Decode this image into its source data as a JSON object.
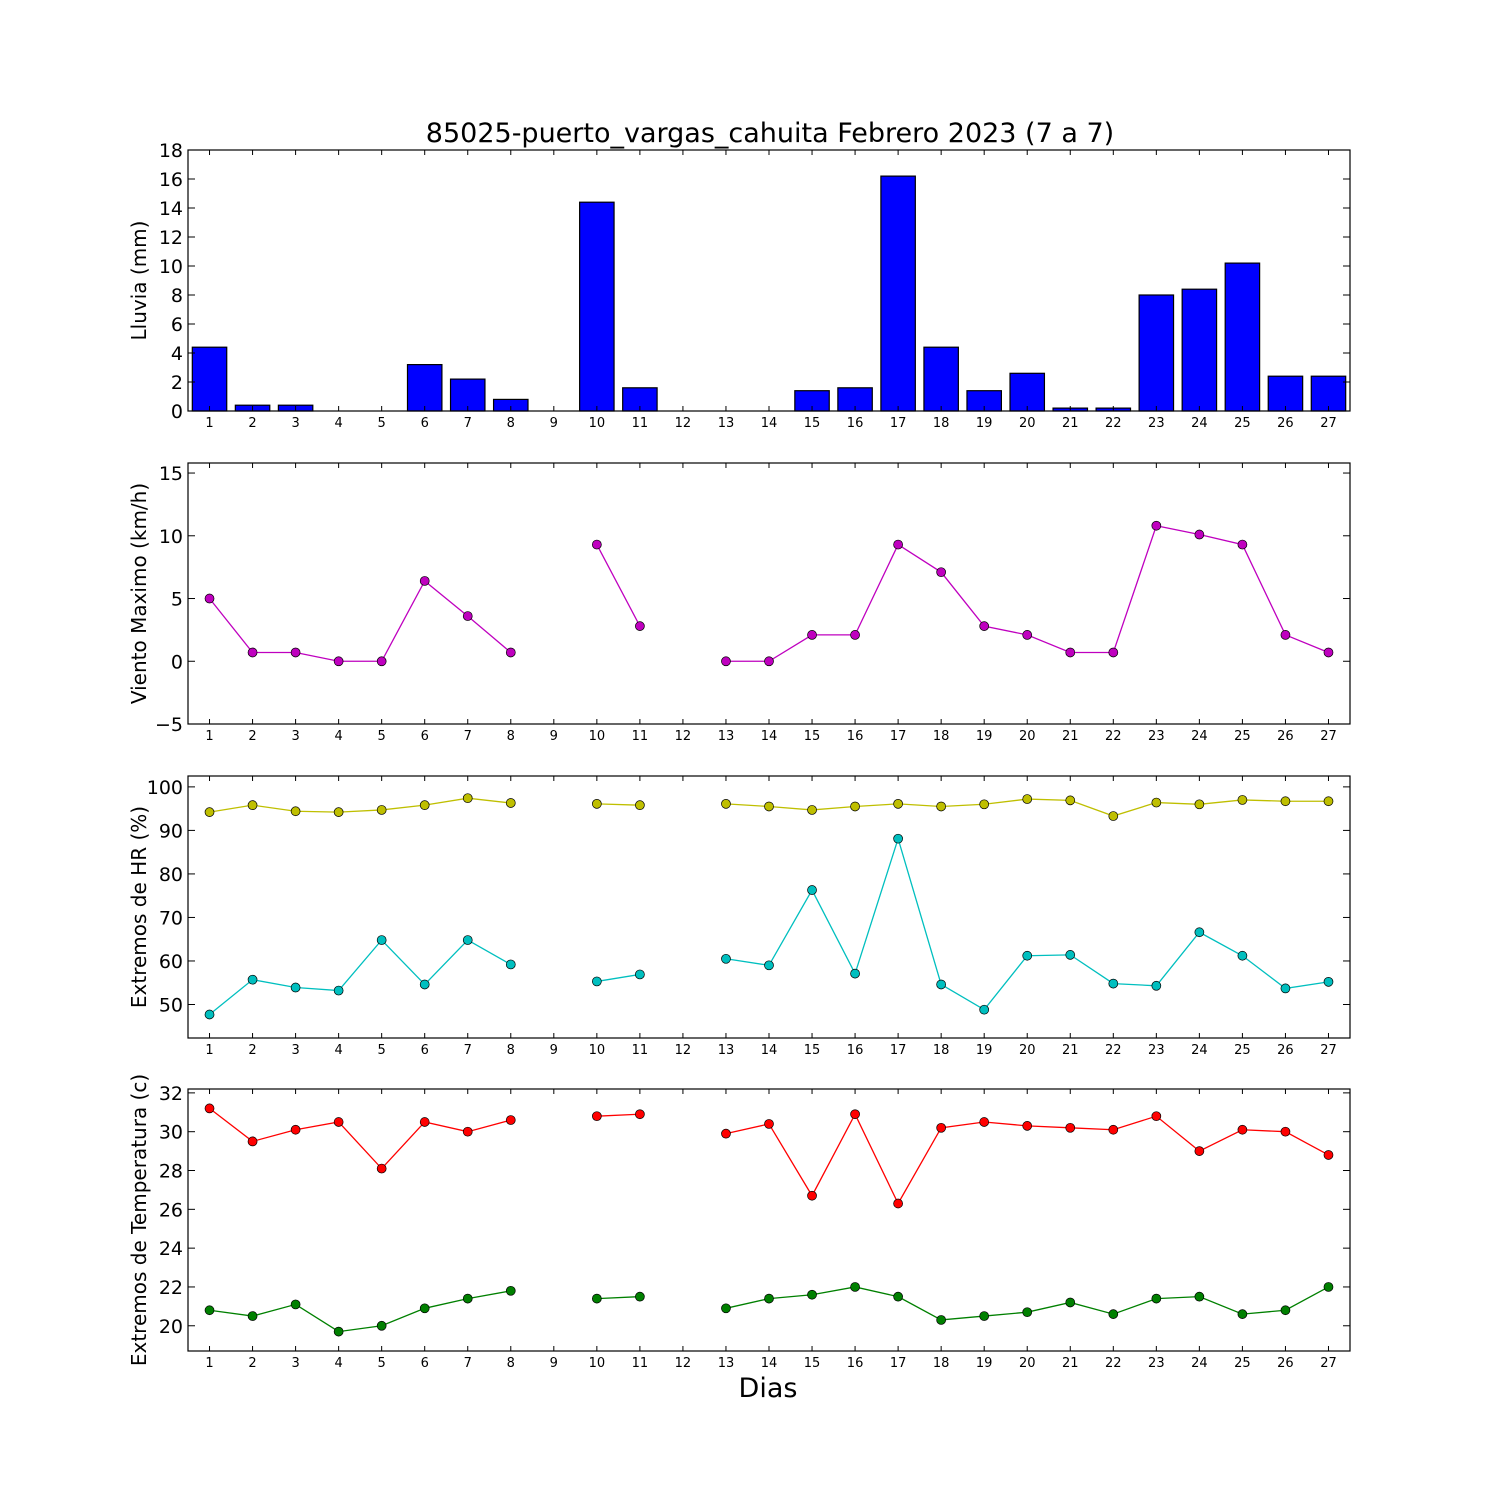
{
  "chart_data": {
    "title": "85025-puerto_vargas_cahuita Febrero 2023  (7 a 7)",
    "xlabel": "Dias",
    "days": [
      1,
      2,
      3,
      4,
      5,
      6,
      7,
      8,
      9,
      10,
      11,
      12,
      13,
      14,
      15,
      16,
      17,
      18,
      19,
      20,
      21,
      22,
      23,
      24,
      25,
      26,
      27
    ],
    "panels": [
      {
        "type": "bar",
        "ylabel": "Lluvia (mm)",
        "ylim": [
          0,
          18
        ],
        "yticks": [
          0,
          2,
          4,
          6,
          8,
          10,
          12,
          14,
          16,
          18
        ],
        "series": [
          {
            "color": "#0000ff",
            "values": [
              4.4,
              0.4,
              0.4,
              0,
              0,
              3.2,
              2.2,
              0.8,
              0,
              14.4,
              1.6,
              0,
              0,
              0,
              1.4,
              1.6,
              16.2,
              4.4,
              1.4,
              2.6,
              0.2,
              0.2,
              8.0,
              8.4,
              10.2,
              2.4,
              2.4
            ]
          }
        ]
      },
      {
        "type": "line",
        "ylabel": "Viento Maximo (km/h)",
        "ylim": [
          -5,
          15.8
        ],
        "yticks": [
          -5,
          0,
          5,
          10,
          15
        ],
        "ytick_labels": [
          "−5",
          "0",
          "5",
          "10",
          "15"
        ],
        "series": [
          {
            "color": "#bf00bf",
            "values": [
              5.0,
              0.7,
              0.7,
              0,
              0,
              6.4,
              3.6,
              0.7,
              null,
              9.3,
              2.8,
              null,
              0,
              0,
              2.1,
              2.1,
              9.3,
              7.1,
              2.8,
              2.1,
              0.7,
              0.7,
              10.8,
              10.1,
              9.3,
              2.1,
              0.7
            ]
          }
        ]
      },
      {
        "type": "line",
        "ylabel": "Extremos de HR (%)",
        "ylim": [
          42.3,
          102.5
        ],
        "yticks": [
          50,
          60,
          70,
          80,
          90,
          100
        ],
        "series": [
          {
            "color": "#bfbf00",
            "values": [
              94.2,
              95.8,
              94.4,
              94.2,
              94.7,
              95.8,
              97.4,
              96.3,
              null,
              96.1,
              95.8,
              null,
              96.1,
              95.5,
              94.7,
              95.5,
              96.1,
              95.5,
              96.0,
              97.2,
              96.9,
              93.3,
              96.4,
              96.0,
              97.0,
              96.7,
              96.7
            ]
          },
          {
            "color": "#00bfbf",
            "values": [
              47.7,
              55.7,
              53.9,
              53.2,
              64.8,
              54.6,
              64.8,
              59.2,
              null,
              55.3,
              56.9,
              null,
              60.5,
              59.0,
              76.3,
              57.1,
              88.1,
              54.6,
              48.8,
              61.2,
              61.4,
              54.8,
              54.3,
              66.6,
              61.2,
              53.7,
              55.2
            ]
          }
        ]
      },
      {
        "type": "line",
        "ylabel": "Extremos de Temperatura (c)",
        "ylim": [
          18.7,
          32.2
        ],
        "yticks": [
          20,
          22,
          24,
          26,
          28,
          30,
          32
        ],
        "series": [
          {
            "color": "#ff0000",
            "values": [
              31.2,
              29.5,
              30.1,
              30.5,
              28.1,
              30.5,
              30.0,
              30.6,
              null,
              30.8,
              30.9,
              null,
              29.9,
              30.4,
              26.7,
              30.9,
              26.3,
              30.2,
              30.5,
              30.3,
              30.2,
              30.1,
              30.8,
              29.0,
              30.1,
              30.0,
              28.8
            ]
          },
          {
            "color": "#008000",
            "values": [
              20.8,
              20.5,
              21.1,
              19.7,
              20.0,
              20.9,
              21.4,
              21.8,
              null,
              21.4,
              21.5,
              null,
              20.9,
              21.4,
              21.6,
              22.0,
              21.5,
              20.3,
              20.5,
              20.7,
              21.2,
              20.6,
              21.4,
              21.5,
              20.6,
              20.8,
              22.0
            ]
          }
        ]
      }
    ]
  }
}
